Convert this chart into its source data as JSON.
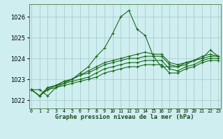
{
  "title": "Graphe pression niveau de la mer (hPa)",
  "bg_color": "#ceeef0",
  "grid_color": "#aacdd0",
  "line_color": "#1a6b1a",
  "xlim": [
    -0.3,
    23.3
  ],
  "ylim": [
    1021.6,
    1026.6
  ],
  "yticks": [
    1022,
    1023,
    1024,
    1025,
    1026
  ],
  "xtick_labels": [
    "0",
    "1",
    "2",
    "3",
    "4",
    "5",
    "6",
    "7",
    "8",
    "9",
    "10",
    "11",
    "12",
    "13",
    "14",
    "15",
    "16",
    "17",
    "18",
    "19",
    "20",
    "21",
    "22",
    "23"
  ],
  "series": [
    [
      1022.5,
      1022.5,
      1022.2,
      1022.6,
      1022.8,
      1023.0,
      1023.3,
      1023.6,
      1024.1,
      1024.5,
      1025.2,
      1026.0,
      1026.3,
      1025.4,
      1025.1,
      1024.1,
      1023.6,
      1023.6,
      1023.6,
      1023.8,
      1023.9,
      1024.0,
      1024.4,
      1024.1
    ],
    [
      1022.5,
      1022.2,
      1022.6,
      1022.7,
      1022.9,
      1023.0,
      1023.2,
      1023.4,
      1023.6,
      1023.8,
      1023.9,
      1024.0,
      1024.1,
      1024.2,
      1024.3,
      1024.2,
      1024.2,
      1023.8,
      1023.7,
      1023.8,
      1023.9,
      1024.1,
      1024.2,
      1024.1
    ],
    [
      1022.5,
      1022.2,
      1022.6,
      1022.7,
      1022.9,
      1023.0,
      1023.2,
      1023.3,
      1023.5,
      1023.7,
      1023.8,
      1023.9,
      1024.0,
      1024.0,
      1024.1,
      1024.1,
      1024.1,
      1023.7,
      1023.6,
      1023.7,
      1023.9,
      1024.0,
      1024.1,
      1024.1
    ],
    [
      1022.5,
      1022.2,
      1022.5,
      1022.7,
      1022.8,
      1022.9,
      1023.0,
      1023.1,
      1023.3,
      1023.5,
      1023.6,
      1023.7,
      1023.8,
      1023.8,
      1023.9,
      1023.9,
      1023.9,
      1023.5,
      1023.4,
      1023.6,
      1023.7,
      1023.9,
      1024.0,
      1024.0
    ],
    [
      1022.5,
      1022.2,
      1022.5,
      1022.6,
      1022.7,
      1022.8,
      1022.9,
      1023.0,
      1023.1,
      1023.3,
      1023.4,
      1023.5,
      1023.6,
      1023.6,
      1023.7,
      1023.7,
      1023.7,
      1023.3,
      1023.3,
      1023.5,
      1023.6,
      1023.8,
      1023.9,
      1023.9
    ]
  ],
  "marker": "+",
  "markersize": 3.5,
  "linewidth": 0.8
}
